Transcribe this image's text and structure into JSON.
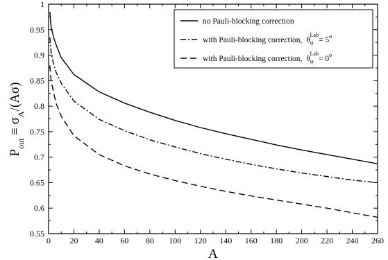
{
  "chart_data": {
    "type": "line",
    "xlabel": "A",
    "ylabel": {
      "main": "P",
      "sub1": "out",
      "mid": " ≡ σ",
      "sub2": "A",
      "tail": "/(Aσ)"
    },
    "xlim": [
      0,
      260
    ],
    "ylim": [
      0.55,
      1.0
    ],
    "x_ticks": [
      0,
      20,
      40,
      60,
      80,
      100,
      120,
      140,
      160,
      180,
      200,
      220,
      240,
      260
    ],
    "y_ticks": [
      0.55,
      0.6,
      0.65,
      0.7,
      0.75,
      0.8,
      0.85,
      0.9,
      0.95,
      1
    ],
    "grid": false,
    "legend_position": "top-right",
    "x": [
      1,
      2,
      4,
      6,
      10,
      20,
      40,
      60,
      80,
      100,
      120,
      140,
      160,
      180,
      200,
      220,
      240,
      260
    ],
    "series": [
      {
        "name": "no Pauli-blocking correction",
        "dash": "solid",
        "values": [
          0.985,
          0.955,
          0.935,
          0.92,
          0.895,
          0.862,
          0.828,
          0.806,
          0.788,
          0.772,
          0.758,
          0.746,
          0.735,
          0.724,
          0.714,
          0.705,
          0.696,
          0.687
        ]
      },
      {
        "name": "with Pauli-blocking correction,",
        "theta": {
          "base": "θ",
          "sub": "φ",
          "sup": "Lab",
          "value": "= 5",
          "deg": "o"
        },
        "dash": "dashdot",
        "values": [
          0.935,
          0.905,
          0.882,
          0.866,
          0.845,
          0.81,
          0.774,
          0.752,
          0.734,
          0.72,
          0.707,
          0.696,
          0.686,
          0.677,
          0.669,
          0.662,
          0.655,
          0.65
        ]
      },
      {
        "name": "with Pauli-blocking correction,",
        "theta": {
          "base": "θ",
          "sub": "φ",
          "sup": "Lab",
          "value": "= 0",
          "deg": "o"
        },
        "dash": "dashed",
        "values": [
          0.88,
          0.85,
          0.826,
          0.805,
          0.78,
          0.742,
          0.705,
          0.683,
          0.667,
          0.654,
          0.643,
          0.633,
          0.624,
          0.616,
          0.608,
          0.6,
          0.591,
          0.582
        ]
      }
    ]
  }
}
